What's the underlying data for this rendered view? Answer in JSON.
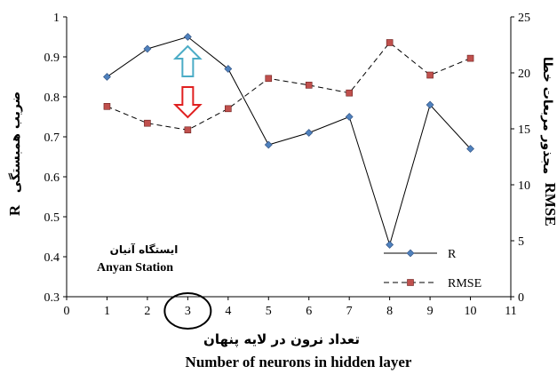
{
  "chart_data": {
    "type": "line",
    "x": [
      1,
      2,
      3,
      4,
      5,
      6,
      7,
      8,
      9,
      10
    ],
    "xlim": [
      0,
      11
    ],
    "x_ticks": [
      "0",
      "1",
      "2",
      "3",
      "4",
      "5",
      "6",
      "7",
      "8",
      "9",
      "10",
      "11"
    ],
    "left_ylim": [
      0.3,
      1
    ],
    "left_y_ticks": [
      "0.3",
      "0.4",
      "0.5",
      "0.6",
      "0.7",
      "0.8",
      "0.9",
      "1"
    ],
    "right_ylim": [
      0,
      25
    ],
    "right_y_ticks": [
      "0",
      "5",
      "10",
      "15",
      "20",
      "25"
    ],
    "grid": false,
    "legend_position": "bottom-right",
    "series": [
      {
        "name": "R",
        "axis": "left",
        "color": "#000000",
        "marker": "diamond",
        "marker_color": "#4f81bd",
        "line_style": "solid",
        "values": [
          0.85,
          0.92,
          0.95,
          0.87,
          0.68,
          0.71,
          0.75,
          0.43,
          0.78,
          0.67
        ]
      },
      {
        "name": "RMSE",
        "axis": "right",
        "color": "#000000",
        "marker": "square",
        "marker_color": "#c0504d",
        "line_style": "dashed",
        "values": [
          17.0,
          15.5,
          14.9,
          16.8,
          19.5,
          18.9,
          18.2,
          22.7,
          19.8,
          21.3
        ]
      }
    ],
    "xlabel_fa": "تعداد نرون در لایه پنهان",
    "xlabel_en": "Number of neurons in hidden layer",
    "ylabel_left_fa": "ضریب همبستگی",
    "ylabel_left_sym": "R",
    "ylabel_right_fa": "مجذور مربعات خطا",
    "ylabel_right_sym": "RMSE",
    "station_fa": "ایستگاه آنیان",
    "station_en": "Anyan Station",
    "highlight_x": 3,
    "highlight_colors": {
      "up_arrow": "#4bacc6",
      "down_arrow": "#e02020",
      "circle": "#000000"
    }
  }
}
